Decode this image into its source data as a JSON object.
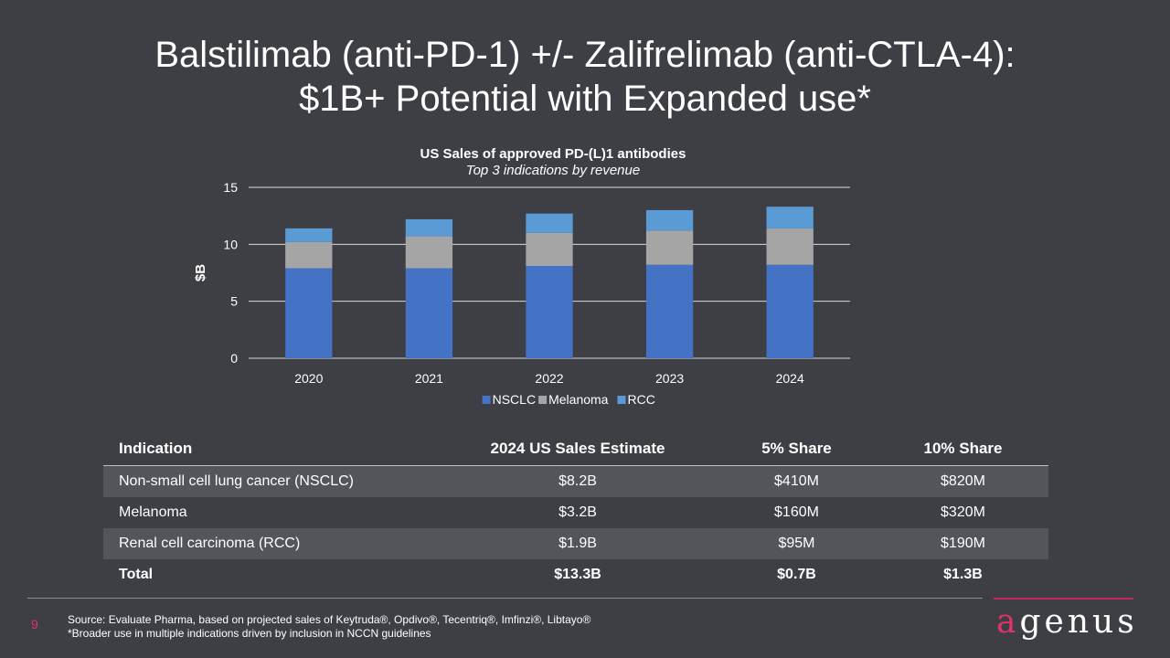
{
  "title": {
    "line1": "Balstilimab (anti-PD-1) +/- Zalifrelimab (anti-CTLA-4):",
    "line2": "$1B+ Potential with Expanded use*"
  },
  "chart_data": {
    "type": "bar",
    "stacked": true,
    "title": "US Sales of approved PD-(L)1 antibodies",
    "subtitle": "Top 3 indications by revenue",
    "xlabel": "",
    "ylabel": "$B",
    "ylim": [
      0,
      15
    ],
    "yticks": [
      0,
      5,
      10,
      15
    ],
    "grid": true,
    "legend": "bottom",
    "categories": [
      "2020",
      "2021",
      "2022",
      "2023",
      "2024"
    ],
    "series": [
      {
        "name": "NSCLC",
        "color": "#4472c4",
        "values": [
          7.9,
          7.9,
          8.1,
          8.2,
          8.2
        ]
      },
      {
        "name": "Melanoma",
        "color": "#a5a5a5",
        "values": [
          2.3,
          2.8,
          2.9,
          3.0,
          3.2
        ]
      },
      {
        "name": "RCC",
        "color": "#5b9bd5",
        "values": [
          1.2,
          1.5,
          1.7,
          1.8,
          1.9
        ]
      }
    ]
  },
  "table": {
    "headers": [
      "Indication",
      "2024 US Sales Estimate",
      "5% Share",
      "10% Share"
    ],
    "rows": [
      [
        "Non-small cell lung cancer (NSCLC)",
        "$8.2B",
        "$410M",
        "$820M"
      ],
      [
        "Melanoma",
        "$3.2B",
        "$160M",
        "$320M"
      ],
      [
        "Renal cell carcinoma (RCC)",
        "$1.9B",
        "$95M",
        "$190M"
      ],
      [
        "Total",
        "$13.3B",
        "$0.7B",
        "$1.3B"
      ]
    ]
  },
  "footer": {
    "page_number": "9",
    "source": "Source:  Evaluate Pharma, based on projected sales of Keytruda®, Opdivo®, Tecentriq®, Imfinzi®, Libtayo®",
    "note": "*Broader use in multiple indications driven by inclusion in NCCN guidelines",
    "logo_first": "a",
    "logo_rest": "genus"
  }
}
